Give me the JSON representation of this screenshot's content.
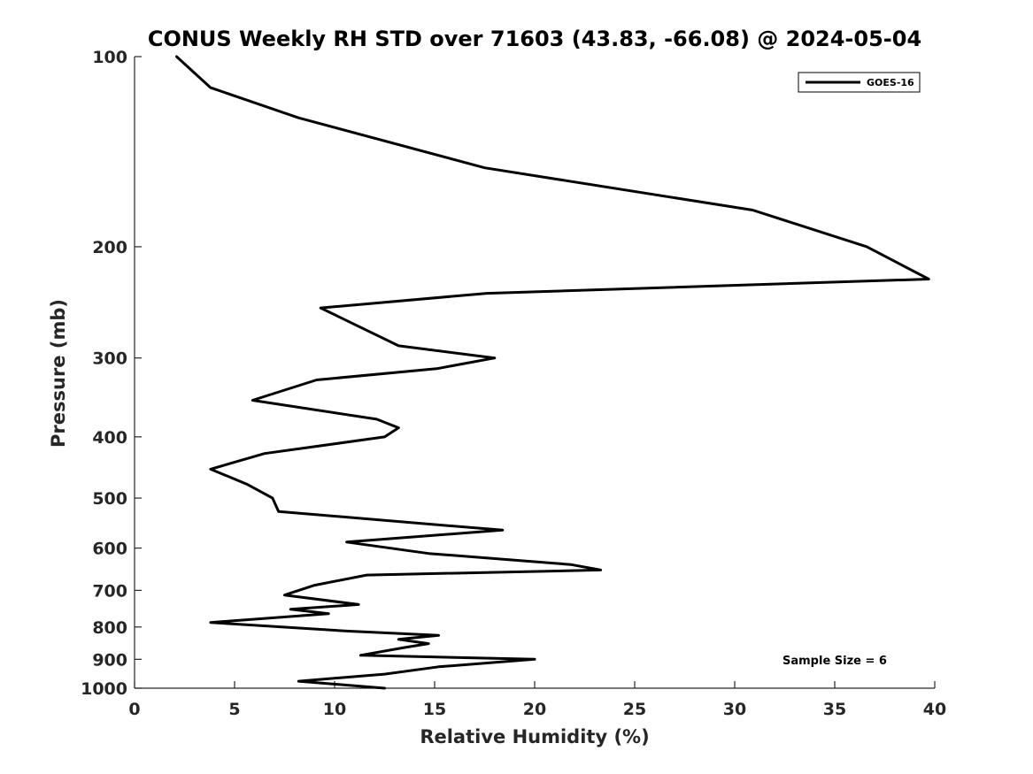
{
  "chart_data": {
    "type": "line",
    "title": "CONUS Weekly RH STD over 71603 (43.83, -66.08) @ 2024-05-04",
    "xlabel": "Relative Humidity (%)",
    "ylabel": "Pressure (mb)",
    "xlim": [
      0,
      40
    ],
    "ylim": [
      1000,
      100
    ],
    "y_scale": "log",
    "y_reversed": true,
    "x_ticks": [
      0,
      5,
      10,
      15,
      20,
      25,
      30,
      35,
      40
    ],
    "y_ticks": [
      100,
      200,
      300,
      400,
      500,
      600,
      700,
      800,
      900,
      1000
    ],
    "grid": false,
    "legend_position": "top-right",
    "annotation": "Sample Size = 6",
    "series": [
      {
        "name": "GOES-16",
        "color": "#000000",
        "points": [
          [
            12.5,
            1000
          ],
          [
            8.2,
            975
          ],
          [
            12.5,
            950
          ],
          [
            15.2,
            925
          ],
          [
            20.0,
            900
          ],
          [
            11.3,
            887
          ],
          [
            13.5,
            862
          ],
          [
            14.7,
            850
          ],
          [
            13.2,
            837
          ],
          [
            15.2,
            825
          ],
          [
            10.6,
            812
          ],
          [
            3.8,
            787
          ],
          [
            9.7,
            762
          ],
          [
            7.8,
            750
          ],
          [
            11.2,
            737
          ],
          [
            7.5,
            712
          ],
          [
            9.0,
            687
          ],
          [
            11.6,
            662
          ],
          [
            23.3,
            650
          ],
          [
            21.8,
            637
          ],
          [
            14.7,
            612
          ],
          [
            10.6,
            587
          ],
          [
            18.4,
            562
          ],
          [
            14.8,
            550
          ],
          [
            7.2,
            525
          ],
          [
            6.9,
            500
          ],
          [
            5.6,
            475
          ],
          [
            3.8,
            450
          ],
          [
            6.5,
            425
          ],
          [
            12.5,
            400
          ],
          [
            13.2,
            387
          ],
          [
            12.1,
            375
          ],
          [
            5.9,
            350
          ],
          [
            9.1,
            325
          ],
          [
            15.1,
            312
          ],
          [
            18.0,
            300
          ],
          [
            13.2,
            287
          ],
          [
            9.3,
            250
          ],
          [
            17.6,
            237
          ],
          [
            39.7,
            225
          ],
          [
            36.6,
            200
          ],
          [
            30.9,
            175
          ],
          [
            17.5,
            150
          ],
          [
            8.2,
            125
          ],
          [
            3.8,
            112
          ],
          [
            2.1,
            100
          ]
        ]
      }
    ]
  }
}
